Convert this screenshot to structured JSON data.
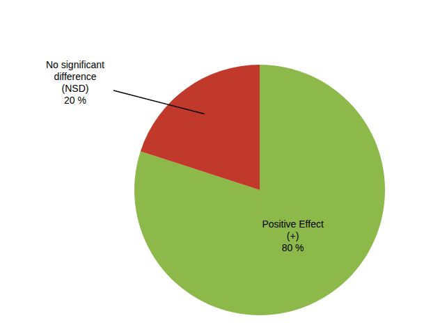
{
  "chart_data": {
    "type": "pie",
    "categories": [
      "Positive Effect\n(+)\n80 %",
      "No significant\ndifference\n(NSD)\n20 %"
    ],
    "values": [
      80,
      20
    ],
    "colors": [
      "#8db84a",
      "#c0392b"
    ]
  }
}
